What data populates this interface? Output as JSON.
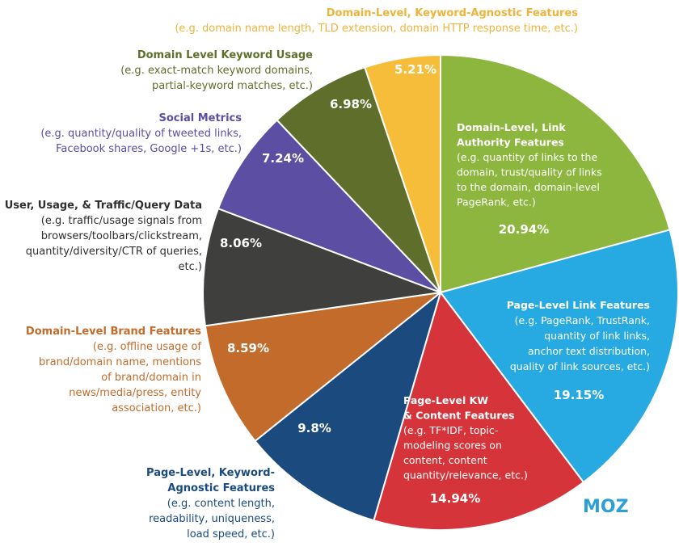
{
  "chart_data": {
    "type": "pie",
    "slices": [
      {
        "title": "Domain-Level, Link Authority Features",
        "desc": [
          "(e.g. quantity of links to the",
          "domain, trust/quality of links",
          "to the domain, domain-level",
          "PageRank, etc.)"
        ],
        "title_lines": [
          "Domain-Level, Link",
          "Authority Features"
        ],
        "value": 20.94,
        "label": "20.94%",
        "color": "#8cb63e",
        "text_color": "#ffffff"
      },
      {
        "title": "Page-Level Link Features",
        "title_lines": [
          "Page-Level Link Features"
        ],
        "desc": [
          "(e.g. PageRank, TrustRank,",
          "quantity of link links,",
          "anchor text distribution,",
          "quality of link sources, etc.)"
        ],
        "value": 19.15,
        "label": "19.15%",
        "color": "#27aae1",
        "text_color": "#ffffff"
      },
      {
        "title": "Page-Level KW & Content Features",
        "title_lines": [
          "Page-Level KW",
          "& Content Features"
        ],
        "desc": [
          "(e.g. TF*IDF, topic-",
          "modeling scores on",
          "content, content",
          "quantity/relevance, etc.)"
        ],
        "value": 14.94,
        "label": "14.94%",
        "color": "#d4343a",
        "text_color": "#ffffff"
      },
      {
        "title": "Page-Level, Keyword-Agnostic Features",
        "title_lines": [
          "Page-Level, Keyword-",
          "Agnostic Features"
        ],
        "desc": [
          "(e.g. content length,",
          "readability, uniqueness,",
          "load speed, etc.)"
        ],
        "value": 9.8,
        "label": "9.8%",
        "color": "#1b4a7e",
        "text_color": "#1b4a7e"
      },
      {
        "title": "Domain-Level Brand Features",
        "title_lines": [
          "Domain-Level Brand Features"
        ],
        "desc": [
          "(e.g. offline usage of",
          "brand/domain name, mentions",
          "of brand/domain in",
          "news/media/press, entity",
          "association, etc.)"
        ],
        "value": 8.59,
        "label": "8.59%",
        "color": "#c26b2b",
        "text_color": "#c26b2b"
      },
      {
        "title": "User, Usage, & Traffic/Query Data",
        "title_lines": [
          "User, Usage, & Traffic/Query Data"
        ],
        "desc": [
          "(e.g. traffic/usage signals from",
          "browsers/toolbars/clickstream,",
          "quantity/diversity/CTR of queries,",
          "etc.)"
        ],
        "value": 8.06,
        "label": "8.06%",
        "color": "#3f3f3d",
        "text_color": "#2f2f2f"
      },
      {
        "title": "Social Metrics",
        "title_lines": [
          "Social Metrics"
        ],
        "desc": [
          "(e.g. quantity/quality of tweeted links,",
          "Facebook shares, Google +1s, etc.)"
        ],
        "value": 7.24,
        "label": "7.24%",
        "color": "#5b4ea3",
        "text_color": "#5b4ea3"
      },
      {
        "title": "Domain Level Keyword Usage",
        "title_lines": [
          "Domain Level Keyword Usage"
        ],
        "desc": [
          "(e.g. exact-match keyword domains,",
          "partial-keyword matches, etc.)"
        ],
        "value": 6.98,
        "label": "6.98%",
        "color": "#5f6e2a",
        "text_color": "#5f6e2a"
      },
      {
        "title": "Domain-Level, Keyword-Agnostic Features",
        "title_lines": [
          "Domain-Level, Keyword-Agnostic Features"
        ],
        "desc": [
          "(e.g. domain name length, TLD extension, domain HTTP response time, etc.)"
        ],
        "value": 5.21,
        "label": "5.21%",
        "color": "#f6bd3a",
        "text_color": "#f0b33a"
      }
    ]
  },
  "brand": {
    "logo_text": "MOZ",
    "color": "#2a9fd8"
  }
}
